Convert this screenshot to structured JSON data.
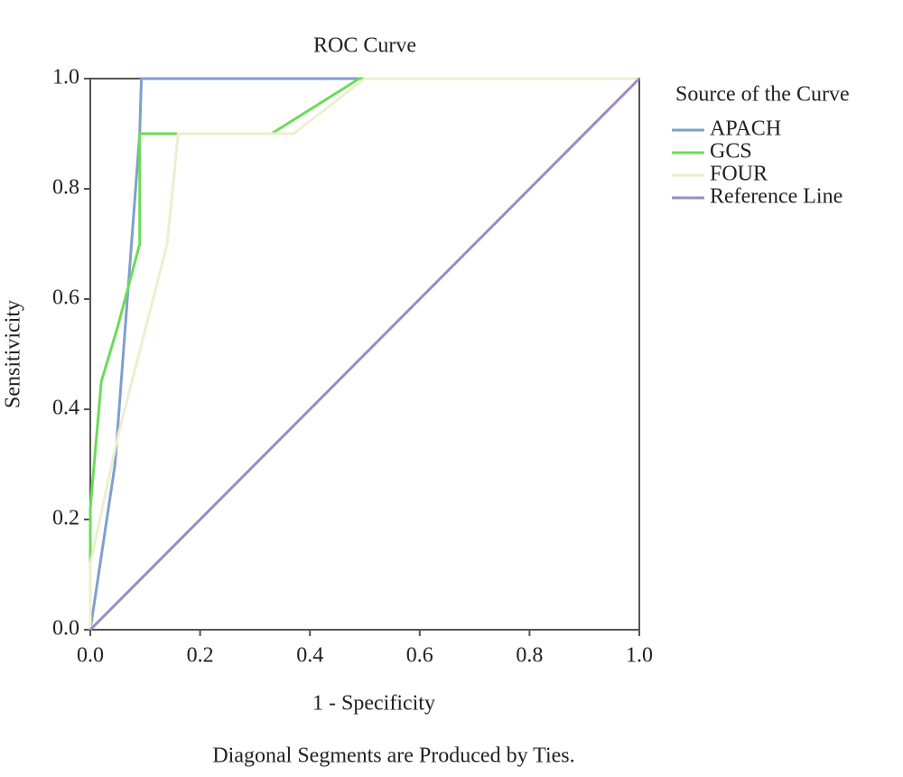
{
  "chart_data": {
    "type": "line",
    "title": "ROC Curve",
    "x_label": "1 - Specificity",
    "y_label": "Sensitivicity",
    "legend_title": "Source of the Curve",
    "legend": "right",
    "footnote": "Diagonal Segments are Produced by Ties.",
    "xlim": [
      0,
      1
    ],
    "ylim": [
      0,
      1
    ],
    "xticks": [
      {
        "value": 0,
        "label": "0.0"
      },
      0.2,
      0.4,
      0.6,
      0.8,
      {
        "value": 1,
        "label": "1.0"
      }
    ],
    "yticks": [
      {
        "value": 0,
        "label": "0.0"
      },
      0.2,
      0.4,
      0.6,
      0.8,
      {
        "value": 1,
        "label": "1.0"
      }
    ],
    "series": [
      {
        "name": "APACH",
        "color": "#7f9fcf",
        "x": [
          0,
          0.045,
          0.09,
          0.093,
          1
        ],
        "values": [
          0,
          0.3,
          0.9,
          1,
          1
        ]
      },
      {
        "name": "GCS",
        "color": "#6bdc55",
        "x": [
          0,
          0,
          0.02,
          0.05,
          0.09,
          0.09,
          0.33,
          0.49,
          1
        ],
        "values": [
          0,
          0.22,
          0.45,
          0.55,
          0.7,
          0.9,
          0.9,
          1,
          1
        ]
      },
      {
        "name": "FOUR",
        "color": "#eeeed0",
        "x": [
          0,
          0,
          0.05,
          0.14,
          0.16,
          0.37,
          0.5,
          1
        ],
        "values": [
          0,
          0.12,
          0.35,
          0.7,
          0.9,
          0.9,
          1,
          1
        ]
      },
      {
        "name": "Reference Line",
        "color": "#9a8cc0",
        "x": [
          0,
          1
        ],
        "values": [
          0,
          1
        ]
      }
    ]
  }
}
